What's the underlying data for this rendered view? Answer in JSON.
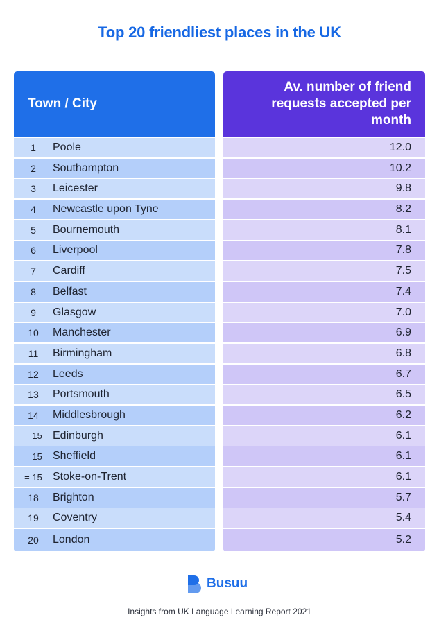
{
  "title": "Top 20 friendliest places in the UK",
  "table": {
    "header_town": "Town / City",
    "header_value": "Av. number of friend requests accepted per month",
    "rows": [
      {
        "rank": "1",
        "town": "Poole",
        "value": "12.0"
      },
      {
        "rank": "2",
        "town": "Southampton",
        "value": "10.2"
      },
      {
        "rank": "3",
        "town": "Leicester",
        "value": "9.8"
      },
      {
        "rank": "4",
        "town": "Newcastle upon Tyne",
        "value": "8.2"
      },
      {
        "rank": "5",
        "town": "Bournemouth",
        "value": "8.1"
      },
      {
        "rank": "6",
        "town": "Liverpool",
        "value": "7.8"
      },
      {
        "rank": "7",
        "town": "Cardiff",
        "value": "7.5"
      },
      {
        "rank": "8",
        "town": "Belfast",
        "value": "7.4"
      },
      {
        "rank": "9",
        "town": "Glasgow",
        "value": "7.0"
      },
      {
        "rank": "10",
        "town": "Manchester",
        "value": "6.9"
      },
      {
        "rank": "11",
        "town": "Birmingham",
        "value": "6.8"
      },
      {
        "rank": "12",
        "town": "Leeds",
        "value": "6.7"
      },
      {
        "rank": "13",
        "town": "Portsmouth",
        "value": "6.5"
      },
      {
        "rank": "14",
        "town": "Middlesbrough",
        "value": "6.2"
      },
      {
        "rank": "= 15",
        "town": "Edinburgh",
        "value": "6.1"
      },
      {
        "rank": "= 15",
        "town": "Sheffield",
        "value": "6.1"
      },
      {
        "rank": "= 15",
        "town": "Stoke-on-Trent",
        "value": "6.1"
      },
      {
        "rank": "18",
        "town": "Brighton",
        "value": "5.7"
      },
      {
        "rank": "19",
        "town": "Coventry",
        "value": "5.4"
      },
      {
        "rank": "20",
        "town": "London",
        "value": "5.2"
      }
    ]
  },
  "brand": {
    "name": "Busuu",
    "icon": "busuu-logo-icon",
    "color": "#1f6fe8"
  },
  "footer": "Insights from UK Language Learning Report 2021",
  "colors": {
    "title": "#1768e4",
    "header_left": "#1f6fe8",
    "header_right": "#5a34dc"
  }
}
